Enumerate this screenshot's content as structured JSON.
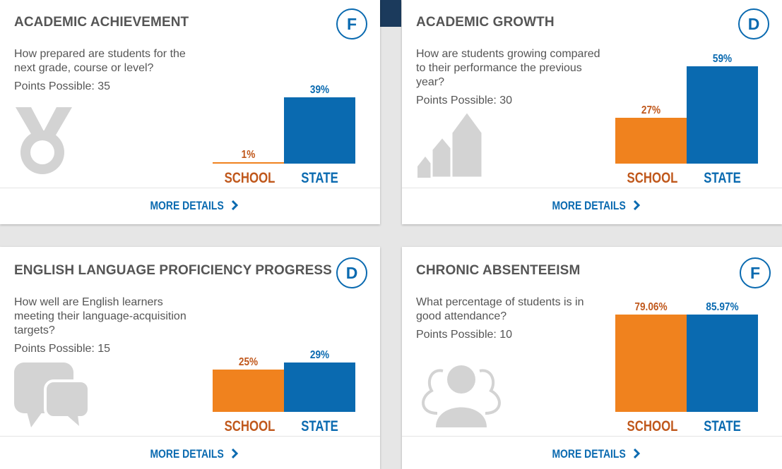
{
  "cards": [
    {
      "title": "ACADEMIC ACHIEVEMENT",
      "grade": "F",
      "question": "How prepared are students for the next grade, course or level?",
      "points": "Points Possible: 35",
      "icon": "medal-icon",
      "school_label": "1%",
      "state_label": "39%",
      "school_value": 1,
      "state_value": 39,
      "more": "MORE DETAILS"
    },
    {
      "title": "ACADEMIC GROWTH",
      "grade": "D",
      "question": "How are students growing compared to their performance the previous year?",
      "points": "Points Possible: 30",
      "icon": "growth-arrows-icon",
      "school_label": "27%",
      "state_label": "59%",
      "school_value": 27,
      "state_value": 59,
      "more": "MORE DETAILS"
    },
    {
      "title": "ENGLISH LANGUAGE PROFICIENCY PROGRESS",
      "grade": "D",
      "question": "How well are English learners meeting their language-acquisition targets?",
      "points": "Points Possible: 15",
      "icon": "speech-bubbles-icon",
      "school_label": "25%",
      "state_label": "29%",
      "school_value": 25,
      "state_value": 29,
      "more": "MORE DETAILS"
    },
    {
      "title": "CHRONIC ABSENTEEISM",
      "grade": "F",
      "question": "What percentage of students is in good attendance?",
      "points": "Points Possible: 10",
      "icon": "people-icon",
      "school_label": "79.06%",
      "state_label": "85.97%",
      "school_value": 79.06,
      "state_value": 85.97,
      "more": "MORE DETAILS"
    }
  ],
  "labels": {
    "school": "SCHOOL",
    "state": "STATE"
  },
  "colors": {
    "school": "#f0821e",
    "state": "#0a6ab0",
    "icon": "#d3d3d3"
  }
}
